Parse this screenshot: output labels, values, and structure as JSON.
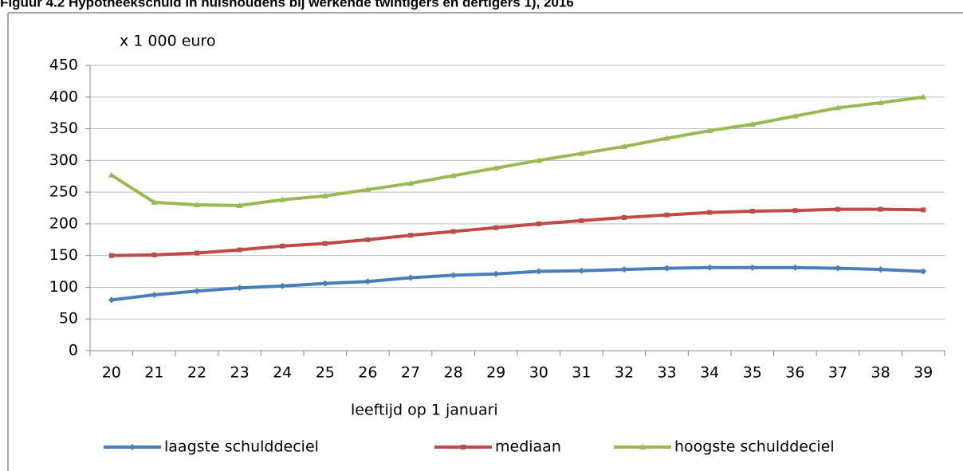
{
  "chart_data": {
    "type": "line",
    "title": "Figuur 4.2 Hypotheekschuld in huishoudens bij werkende twintigers en dertigers 1), 2016",
    "y_label": "x 1 000 euro",
    "x_label": "leeftijd op 1 januari",
    "categories": [
      "20",
      "21",
      "22",
      "23",
      "24",
      "25",
      "26",
      "27",
      "28",
      "29",
      "30",
      "31",
      "32",
      "33",
      "34",
      "35",
      "36",
      "37",
      "38",
      "39"
    ],
    "series": [
      {
        "name": "laagste schulddeciel",
        "color": "#4a7ebb",
        "marker": "diamond",
        "values": [
          80,
          88,
          94,
          99,
          102,
          106,
          109,
          115,
          119,
          121,
          125,
          126,
          128,
          130,
          131,
          131,
          131,
          130,
          128,
          125
        ]
      },
      {
        "name": "mediaan",
        "color": "#be4b48",
        "marker": "square",
        "values": [
          150,
          151,
          154,
          159,
          165,
          169,
          175,
          182,
          188,
          194,
          200,
          205,
          210,
          214,
          218,
          220,
          221,
          223,
          223,
          222
        ]
      },
      {
        "name": "hoogste schulddeciel",
        "color": "#98b954",
        "marker": "triangle",
        "values": [
          277,
          234,
          230,
          229,
          238,
          244,
          254,
          264,
          276,
          288,
          300,
          311,
          322,
          335,
          347,
          357,
          370,
          383,
          391,
          400
        ]
      }
    ],
    "ylim": [
      0,
      450
    ],
    "yticks": [
      0,
      50,
      100,
      150,
      200,
      250,
      300,
      350,
      400,
      450
    ],
    "grid": true,
    "legend": "bottom"
  }
}
